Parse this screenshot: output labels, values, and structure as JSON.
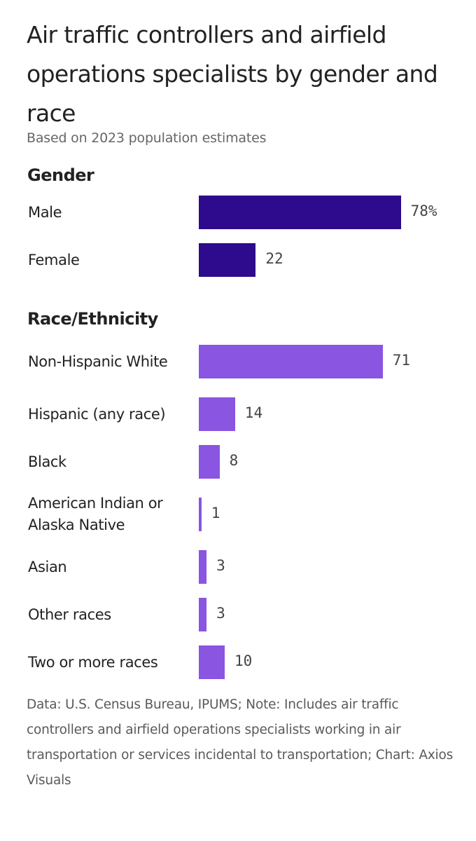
{
  "chart_data": {
    "type": "bar",
    "orientation": "horizontal",
    "title": "Air traffic controllers and airfield operations specialists by gender and race",
    "subtitle": "Based on 2023 population estimates",
    "groups": [
      {
        "name": "Gender",
        "color": "#2e0a8c",
        "categories": [
          "Male",
          "Female"
        ],
        "values": [
          78,
          22
        ],
        "value_labels": [
          "78%",
          "22"
        ]
      },
      {
        "name": "Race/Ethnicity",
        "color": "#8a55e0",
        "categories": [
          "Non-Hispanic White",
          "Hispanic (any race)",
          "Black",
          "American Indian or Alaska Native",
          "Asian",
          "Other races",
          "Two or more races"
        ],
        "values": [
          71,
          14,
          8,
          1,
          3,
          3,
          10
        ],
        "value_labels": [
          "71",
          "14",
          "8",
          "1",
          "3",
          "3",
          "10"
        ]
      }
    ],
    "xlim": [
      0,
      100
    ],
    "grid": false,
    "legend": "none"
  },
  "footer": "Data: U.S. Census Bureau, IPUMS; Note: Includes air traffic controllers and airfield operations specialists working in air transportation or services incidental to transportation; Chart: Axios Visuals"
}
